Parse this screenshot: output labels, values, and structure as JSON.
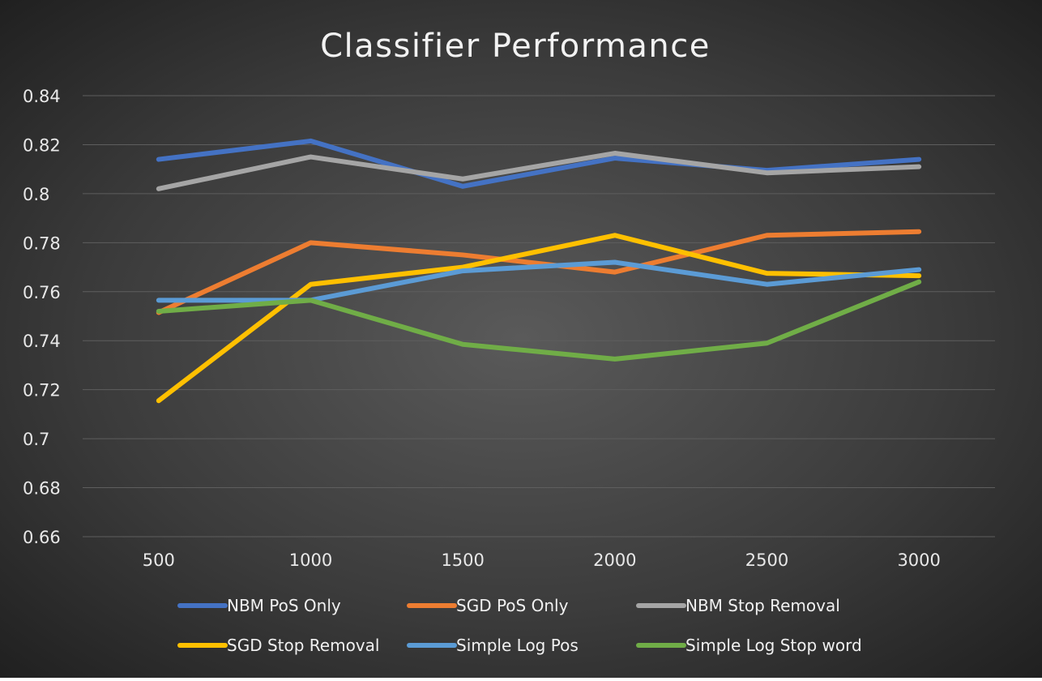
{
  "chart_data": {
    "type": "line",
    "title": "Classifier Performance",
    "xlabel": "",
    "ylabel": "",
    "categories": [
      "500",
      "1000",
      "1500",
      "2000",
      "2500",
      "3000"
    ],
    "y_ticks": [
      "0.66",
      "0.68",
      "0.7",
      "0.72",
      "0.74",
      "0.76",
      "0.78",
      "0.8",
      "0.82",
      "0.84"
    ],
    "ylim": [
      0.66,
      0.84
    ],
    "grid": true,
    "legend_position": "bottom",
    "series": [
      {
        "name": "NBM PoS Only",
        "color": "#4472C4",
        "values": [
          0.814,
          0.8215,
          0.803,
          0.8145,
          0.8095,
          0.814
        ]
      },
      {
        "name": "SGD PoS Only",
        "color": "#ED7D31",
        "values": [
          0.7515,
          0.78,
          0.775,
          0.768,
          0.783,
          0.7845
        ]
      },
      {
        "name": "NBM Stop Removal",
        "color": "#A5A5A5",
        "values": [
          0.802,
          0.815,
          0.806,
          0.8165,
          0.8085,
          0.811
        ]
      },
      {
        "name": "SGD Stop Removal",
        "color": "#FFC000",
        "values": [
          0.7155,
          0.763,
          0.77,
          0.783,
          0.7675,
          0.7665
        ]
      },
      {
        "name": "Simple Log Pos",
        "color": "#5B9BD5",
        "values": [
          0.7565,
          0.7565,
          0.7685,
          0.772,
          0.763,
          0.769
        ]
      },
      {
        "name": "Simple Log Stop word",
        "color": "#70AD47",
        "values": [
          0.752,
          0.7565,
          0.7385,
          0.7325,
          0.739,
          0.764
        ]
      }
    ]
  }
}
